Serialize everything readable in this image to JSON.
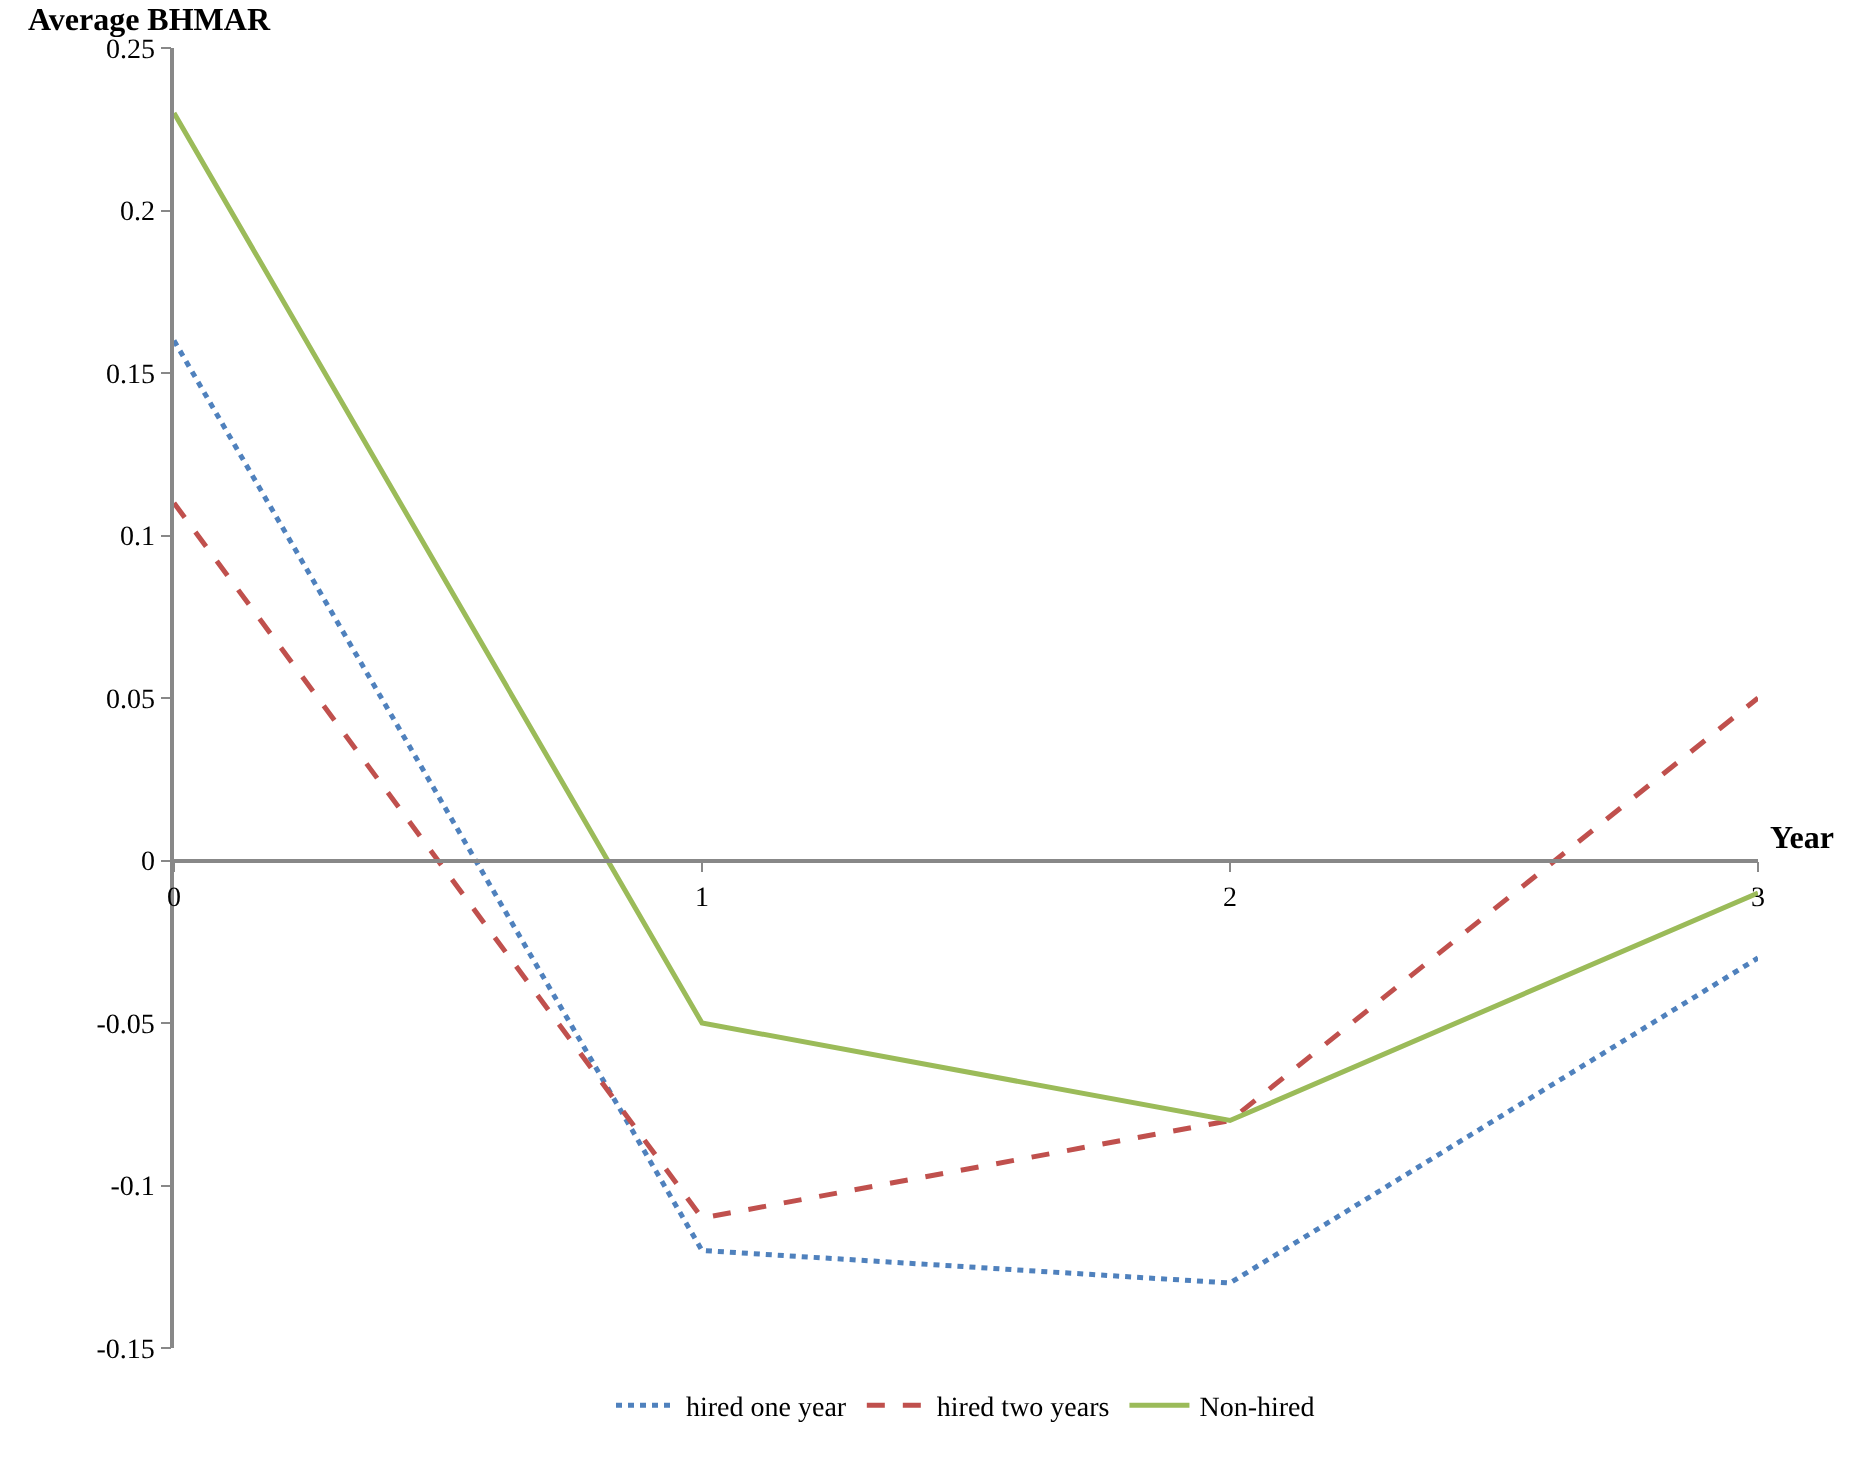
{
  "chart_data": {
    "type": "line",
    "xlabel": "Year",
    "ylabel": "Average BHMAR",
    "x": [
      0,
      1,
      2,
      3
    ],
    "series": [
      {
        "name": "hired one year",
        "color": "#4f81bd",
        "line_style": "dotted",
        "values": [
          0.16,
          -0.12,
          -0.13,
          -0.03
        ]
      },
      {
        "name": "hired two years",
        "color": "#c0504d",
        "line_style": "dashed",
        "values": [
          0.11,
          -0.11,
          -0.08,
          0.05
        ]
      },
      {
        "name": "Non-hired",
        "color": "#9bbb59",
        "line_style": "solid",
        "values": [
          0.23,
          -0.05,
          -0.08,
          -0.01
        ]
      }
    ],
    "xlim": [
      0,
      3
    ],
    "xticks": [
      0,
      1,
      2,
      3
    ],
    "ylim": [
      -0.15,
      0.25
    ],
    "yticks": [
      -0.15,
      -0.1,
      -0.05,
      0,
      0.05,
      0.1,
      0.15,
      0.2,
      0.25
    ],
    "legend": "bottom",
    "marker": "none"
  }
}
